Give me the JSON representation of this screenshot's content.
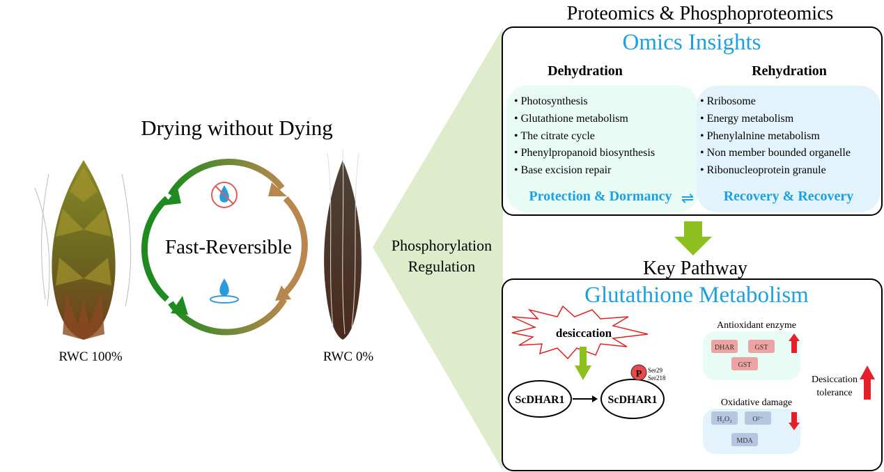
{
  "left": {
    "title": "Drying without Dying",
    "cycle_label": "Fast-Reversible",
    "left_plant_label": "RWC 100%",
    "right_plant_label": "RWC 0%",
    "cycle_colors": {
      "green": "#1f8a1f",
      "tan": "#b8874e"
    }
  },
  "middle": {
    "line1": "Phosphorylation",
    "line2": "Regulation",
    "wedge_color": "#dfeccb"
  },
  "omics": {
    "header": "Proteomics & Phosphoproteomics",
    "title": "Omics Insights",
    "accent": "#1ba1e2",
    "dehydration": {
      "heading": "Dehydration",
      "items": [
        "Photosynthesis",
        "Glutathione metabolism",
        "The citrate cycle",
        "Phenylpropanoid biosynthesis",
        "Base excision repair"
      ],
      "summary": "Protection & Dormancy"
    },
    "rehydration": {
      "heading": "Rehydration",
      "items": [
        "Rribosome",
        "Energy metabolism",
        "Phenylalnine metabolism",
        "Non member bounded organelle",
        "Ribonucleoprotein granule"
      ],
      "summary": "Recovery & Recovery"
    },
    "exchange_symbol": "⇌"
  },
  "pathway": {
    "header": "Key Pathway",
    "title": "Glutathione Metabolism",
    "stress": "desiccation",
    "protein_before": "ScDHAR1",
    "protein_after": "ScDHAR1",
    "phospho": "P",
    "sites": [
      "Ser29",
      "Ser218"
    ],
    "antioxidant": {
      "heading": "Antioxidant enzyme",
      "items": [
        "DHAR",
        "GST",
        "GST"
      ],
      "trend": "up"
    },
    "oxidative": {
      "heading": "Oxidative damage",
      "items": [
        "H₂O₂",
        "O²⁻",
        "MDA"
      ],
      "trend": "down"
    },
    "outcome": {
      "line1": "Desiccation",
      "line2": "tolerance",
      "trend": "up"
    }
  }
}
